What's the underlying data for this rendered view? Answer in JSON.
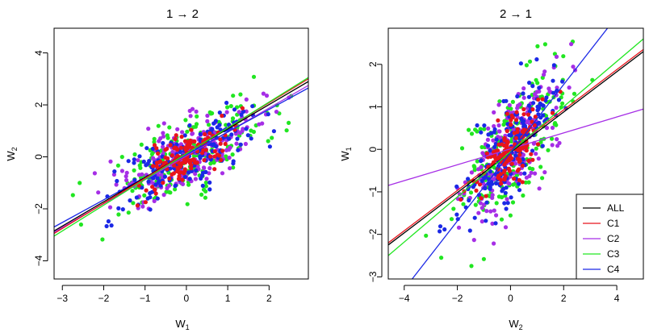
{
  "chart_data": [
    {
      "type": "scatter",
      "title": "1 → 2",
      "xlabel": "W",
      "xlabel_sub": "1",
      "ylabel": "W",
      "ylabel_sub": "2",
      "xlim": [
        -3.2,
        2.95
      ],
      "ylim": [
        -4.7,
        4.95
      ],
      "x_ticks": [
        -3,
        -2,
        -1,
        0,
        1,
        2
      ],
      "y_ticks": [
        -4,
        -2,
        0,
        2,
        4
      ],
      "grid": false,
      "lines": [
        {
          "group": "C2",
          "x": [
            -3.2,
            2.95
          ],
          "y": [
            -2.9,
            2.75
          ]
        },
        {
          "group": "C4",
          "x": [
            -3.2,
            2.95
          ],
          "y": [
            -2.7,
            2.65
          ]
        },
        {
          "group": "ALL",
          "x": [
            -3.2,
            2.95
          ],
          "y": [
            -2.85,
            2.9
          ]
        },
        {
          "group": "C1",
          "x": [
            -3.2,
            2.95
          ],
          "y": [
            -2.95,
            3.0
          ]
        },
        {
          "group": "C3",
          "x": [
            -3.2,
            2.95
          ],
          "y": [
            -3.05,
            3.05
          ]
        }
      ]
    },
    {
      "type": "scatter",
      "title": "2 → 1",
      "xlabel": "W",
      "xlabel_sub": "2",
      "ylabel": "W",
      "ylabel_sub": "1",
      "xlim": [
        -4.6,
        5.0
      ],
      "ylim": [
        -3.05,
        2.85
      ],
      "x_ticks": [
        -4,
        -2,
        0,
        2,
        4
      ],
      "y_ticks": [
        -3,
        -2,
        -1,
        0,
        1,
        2
      ],
      "grid": false,
      "legend": {
        "position": "bottom-right",
        "entries": [
          "ALL",
          "C1",
          "C2",
          "C3",
          "C4"
        ]
      },
      "lines": [
        {
          "group": "C2",
          "x": [
            -4.6,
            5.0
          ],
          "y": [
            -0.85,
            0.95
          ]
        },
        {
          "group": "ALL",
          "x": [
            -4.6,
            5.0
          ],
          "y": [
            -2.25,
            2.3
          ]
        },
        {
          "group": "C1",
          "x": [
            -4.6,
            5.0
          ],
          "y": [
            -2.2,
            2.35
          ]
        },
        {
          "group": "C3",
          "x": [
            -4.6,
            5.0
          ],
          "y": [
            -2.5,
            2.6
          ]
        },
        {
          "group": "C4",
          "x": [
            -3.7,
            3.65
          ],
          "y": [
            -3.05,
            2.85
          ]
        }
      ]
    }
  ],
  "groups": {
    "ALL": "#000000",
    "C1": "#e8141c",
    "C2": "#a62ee6",
    "C3": "#21e621",
    "C4": "#1b28e6"
  },
  "scatter_order": [
    "C3",
    "C2",
    "C4",
    "C1"
  ],
  "scatter_params": {
    "C1": {
      "n": 140,
      "sx": 0.55,
      "sy": 0.65
    },
    "C2": {
      "n": 230,
      "sx": 0.85,
      "sy": 1.05
    },
    "C3": {
      "n": 200,
      "sx": 1.05,
      "sy": 1.2
    },
    "C4": {
      "n": 190,
      "sx": 0.85,
      "sy": 0.95
    }
  }
}
